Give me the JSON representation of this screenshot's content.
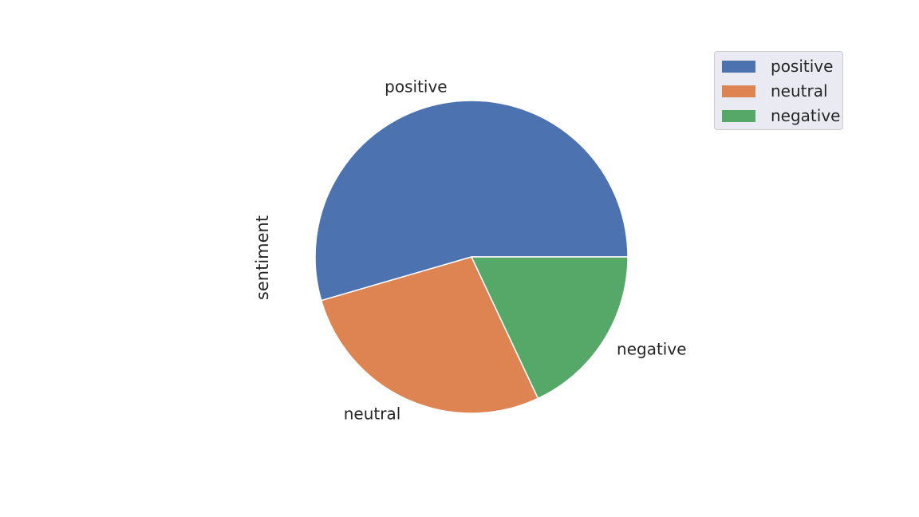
{
  "chart_data": {
    "type": "pie",
    "ylabel": "sentiment",
    "categories": [
      "positive",
      "neutral",
      "negative"
    ],
    "values": [
      54.5,
      27.5,
      18.0
    ],
    "colors": [
      "#4c72b0",
      "#dd8452",
      "#55a868"
    ],
    "startangle": 0,
    "direction": "counterclockwise",
    "legend": {
      "placement": "top-right",
      "entries": [
        "positive",
        "neutral",
        "negative"
      ]
    }
  }
}
